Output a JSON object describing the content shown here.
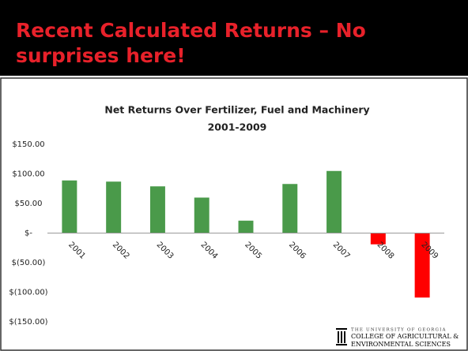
{
  "slide_title_lines": [
    "Recent Calculated Returns – No",
    "surprises here!"
  ],
  "chart_data": {
    "type": "bar",
    "title": "Net Returns Over Fertilizer, Fuel and Machinery",
    "subtitle": "2001-2009",
    "categories": [
      "2001",
      "2002",
      "2003",
      "2004",
      "2005",
      "2006",
      "2007",
      "2008",
      "2009"
    ],
    "values": [
      89,
      87,
      79,
      60,
      21,
      83,
      105,
      -19,
      -109
    ],
    "colors": [
      "#4a9a4a",
      "#4a9a4a",
      "#4a9a4a",
      "#4a9a4a",
      "#4a9a4a",
      "#4a9a4a",
      "#4a9a4a",
      "#ff0000",
      "#ff0000"
    ],
    "ylim": [
      -150,
      150
    ],
    "yticks": [
      {
        "value": -150,
        "label": "$(150.00)"
      },
      {
        "value": -100,
        "label": "$(100.00)"
      },
      {
        "value": -50,
        "label": "$(50.00)"
      },
      {
        "value": 0,
        "label": "$-"
      },
      {
        "value": 50,
        "label": "$50.00"
      },
      {
        "value": 100,
        "label": "$100.00"
      },
      {
        "value": 150,
        "label": "$150.00"
      }
    ],
    "grid": false
  },
  "logo": {
    "lines": [
      "THE UNIVERSITY OF GEORGIA",
      "COLLEGE OF AGRICULTURAL &",
      "ENVIRONMENTAL SCIENCES"
    ]
  }
}
